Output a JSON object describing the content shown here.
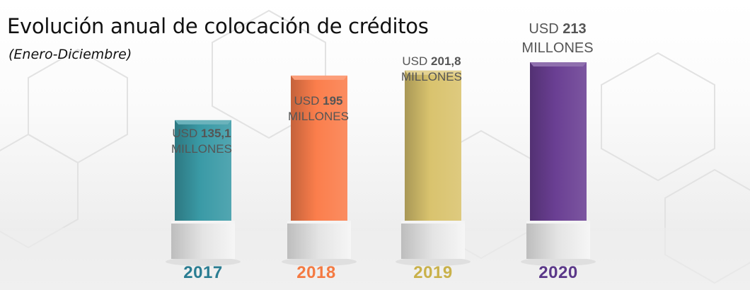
{
  "chart": {
    "title": "Evolución anual de colocación de créditos",
    "subtitle": "(Enero-Diciembre)"
  },
  "chart_data": {
    "type": "bar",
    "title": "Evolución anual de colocación de créditos",
    "subtitle": "(Enero-Diciembre)",
    "categories": [
      "2017",
      "2018",
      "2019",
      "2020"
    ],
    "values": [
      135.1,
      195,
      201.8,
      213
    ],
    "unit": "USD millones",
    "ylim": [
      0,
      213
    ],
    "grid": false,
    "legend": "none",
    "labels": [
      {
        "prefix": "USD",
        "number": "135,1",
        "suffix": "MILLONES"
      },
      {
        "prefix": "USD",
        "number": "195",
        "suffix": "MILLONES"
      },
      {
        "prefix": "USD",
        "number": "201,8",
        "suffix": "MILLONES"
      },
      {
        "prefix": "USD",
        "number": "213",
        "suffix": "MILLONES"
      }
    ],
    "colors": [
      "#3a9aa6",
      "#fb7e4c",
      "#d9c36e",
      "#6a3f93"
    ],
    "year_colors": [
      "#2a7d92",
      "#f47a42",
      "#c9b14a",
      "#5b3889"
    ]
  }
}
